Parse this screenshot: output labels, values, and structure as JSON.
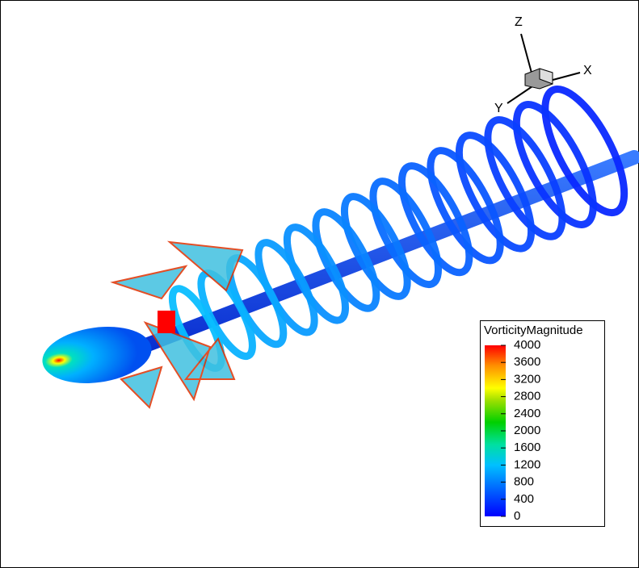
{
  "legend": {
    "title": "VorticityMagnitude",
    "levels": [
      "4000",
      "3600",
      "3200",
      "2800",
      "2400",
      "2000",
      "1600",
      "1200",
      "800",
      "400",
      "0"
    ]
  },
  "axes_triad": {
    "z": "Z",
    "x": "X",
    "y": "Y"
  }
}
